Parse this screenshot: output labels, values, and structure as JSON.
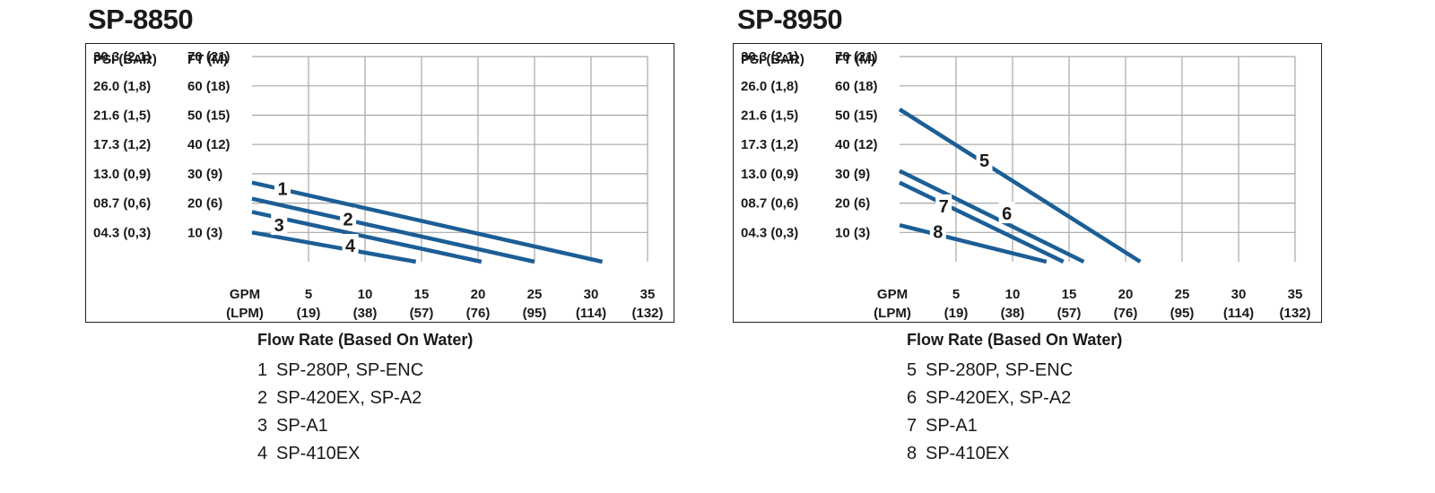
{
  "chart_data": [
    {
      "type": "line",
      "title": "SP-8850",
      "y_axis_left_header": "PSI (BAR)",
      "y_axis_right_header": "FT (M)",
      "y_ticks": [
        {
          "ft": 70,
          "psi_label": "30.3 (2,1)",
          "ft_label": "70 (21)"
        },
        {
          "ft": 60,
          "psi_label": "26.0 (1,8)",
          "ft_label": "60 (18)"
        },
        {
          "ft": 50,
          "psi_label": "21.6 (1,5)",
          "ft_label": "50 (15)"
        },
        {
          "ft": 40,
          "psi_label": "17.3 (1,2)",
          "ft_label": "40 (12)"
        },
        {
          "ft": 30,
          "psi_label": "13.0 (0,9)",
          "ft_label": "30 (9)"
        },
        {
          "ft": 20,
          "psi_label": "08.7 (0,6)",
          "ft_label": "20 (6)"
        },
        {
          "ft": 10,
          "psi_label": "04.3 (0,3)",
          "ft_label": "10 (3)"
        }
      ],
      "x_axis_header": [
        "GPM",
        "(LPM)"
      ],
      "x_ticks": [
        {
          "gpm": 5,
          "gpm_label": "5",
          "lpm_label": "(19)"
        },
        {
          "gpm": 10,
          "gpm_label": "10",
          "lpm_label": "(38)"
        },
        {
          "gpm": 15,
          "gpm_label": "15",
          "lpm_label": "(57)"
        },
        {
          "gpm": 20,
          "gpm_label": "20",
          "lpm_label": "(76)"
        },
        {
          "gpm": 25,
          "gpm_label": "25",
          "lpm_label": "(95)"
        },
        {
          "gpm": 30,
          "gpm_label": "30",
          "lpm_label": "(114)"
        },
        {
          "gpm": 35,
          "gpm_label": "35",
          "lpm_label": "(132)"
        }
      ],
      "xlim": [
        0,
        35
      ],
      "ylim": [
        0,
        70
      ],
      "grid": true,
      "series": [
        {
          "label": "1",
          "x": [
            0,
            31
          ],
          "y": [
            27,
            0
          ],
          "label_at": [
            2.7,
            25
          ]
        },
        {
          "label": "2",
          "x": [
            0,
            25
          ],
          "y": [
            21.5,
            0
          ],
          "label_at": [
            8.5,
            14.5
          ]
        },
        {
          "label": "3",
          "x": [
            0,
            20.3
          ],
          "y": [
            17,
            0
          ],
          "label_at": [
            2.4,
            12.5
          ]
        },
        {
          "label": "4",
          "x": [
            0,
            14.5
          ],
          "y": [
            10,
            0
          ],
          "label_at": [
            8.7,
            5.5
          ]
        }
      ],
      "caption": "Flow Rate (Based On Water)",
      "legend": [
        {
          "num": "1",
          "text": "SP-280P, SP-ENC"
        },
        {
          "num": "2",
          "text": "SP-420EX, SP-A2"
        },
        {
          "num": "3",
          "text": "SP-A1"
        },
        {
          "num": "4",
          "text": "SP-410EX"
        }
      ]
    },
    {
      "type": "line",
      "title": "SP-8950",
      "y_axis_left_header": "PSI (BAR)",
      "y_axis_right_header": "FT (M)",
      "y_ticks": [
        {
          "ft": 70,
          "psi_label": "30.3 (2,1)",
          "ft_label": "70 (21)"
        },
        {
          "ft": 60,
          "psi_label": "26.0 (1,8)",
          "ft_label": "60 (18)"
        },
        {
          "ft": 50,
          "psi_label": "21.6 (1,5)",
          "ft_label": "50 (15)"
        },
        {
          "ft": 40,
          "psi_label": "17.3 (1,2)",
          "ft_label": "40 (12)"
        },
        {
          "ft": 30,
          "psi_label": "13.0 (0,9)",
          "ft_label": "30 (9)"
        },
        {
          "ft": 20,
          "psi_label": "08.7 (0,6)",
          "ft_label": "20 (6)"
        },
        {
          "ft": 10,
          "psi_label": "04.3 (0,3)",
          "ft_label": "10 (3)"
        }
      ],
      "x_axis_header": [
        "GPM",
        "(LPM)"
      ],
      "x_ticks": [
        {
          "gpm": 5,
          "gpm_label": "5",
          "lpm_label": "(19)"
        },
        {
          "gpm": 10,
          "gpm_label": "10",
          "lpm_label": "(38)"
        },
        {
          "gpm": 15,
          "gpm_label": "15",
          "lpm_label": "(57)"
        },
        {
          "gpm": 20,
          "gpm_label": "20",
          "lpm_label": "(76)"
        },
        {
          "gpm": 25,
          "gpm_label": "25",
          "lpm_label": "(95)"
        },
        {
          "gpm": 30,
          "gpm_label": "30",
          "lpm_label": "(114)"
        },
        {
          "gpm": 35,
          "gpm_label": "35",
          "lpm_label": "(132)"
        }
      ],
      "xlim": [
        0,
        35
      ],
      "ylim": [
        0,
        70
      ],
      "grid": true,
      "series": [
        {
          "label": "5",
          "x": [
            0,
            21.3
          ],
          "y": [
            52,
            0
          ],
          "label_at": [
            7.5,
            34.5
          ]
        },
        {
          "label": "6",
          "x": [
            0,
            16.3
          ],
          "y": [
            31,
            0
          ],
          "label_at": [
            9.5,
            16.5
          ]
        },
        {
          "label": "7",
          "x": [
            0,
            14.5
          ],
          "y": [
            27,
            0
          ],
          "label_at": [
            3.9,
            19
          ]
        },
        {
          "label": "8",
          "x": [
            0,
            13
          ],
          "y": [
            12.5,
            0
          ],
          "label_at": [
            3.4,
            10.2
          ]
        }
      ],
      "caption": "Flow Rate (Based On Water)",
      "legend": [
        {
          "num": "5",
          "text": "SP-280P, SP-ENC"
        },
        {
          "num": "6",
          "text": "SP-420EX, SP-A2"
        },
        {
          "num": "7",
          "text": "SP-A1"
        },
        {
          "num": "8",
          "text": "SP-410EX"
        }
      ]
    }
  ],
  "colors": {
    "series_line": "#1c5e96",
    "grid": "#a8a8a8",
    "text": "#1a1a1a"
  }
}
